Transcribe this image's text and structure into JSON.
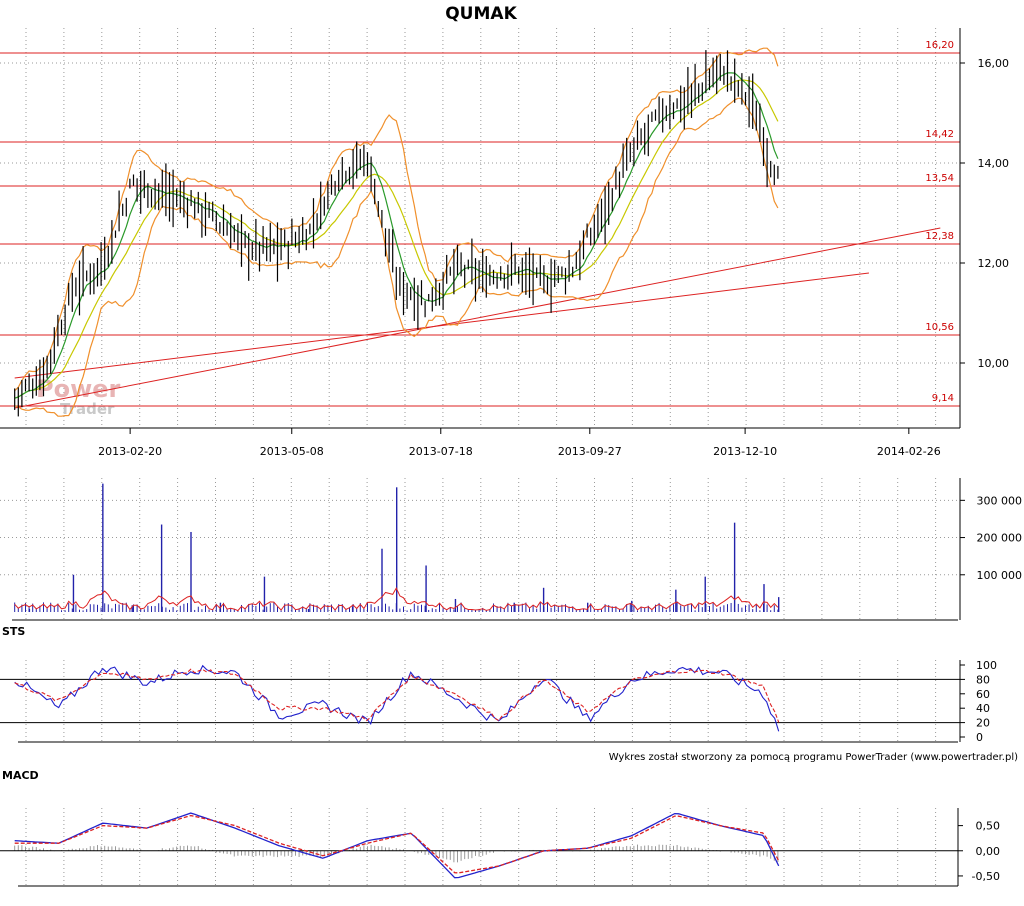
{
  "chart_data": [
    {
      "type": "line",
      "title": "QUMAK",
      "xlabel": "",
      "ylabel": "",
      "ylim": [
        8.7,
        16.7
      ],
      "x_ticks": [
        "2013-02-20",
        "2013-05-08",
        "2013-07-18",
        "2013-09-27",
        "2013-12-10",
        "2014-02-26"
      ],
      "y_ticks": [
        "10,00",
        "12,00",
        "14,00",
        "16,00"
      ],
      "levels": [
        {
          "label": "16,20",
          "value": 16.2
        },
        {
          "label": "14,42",
          "value": 14.42
        },
        {
          "label": "13,54",
          "value": 13.54
        },
        {
          "label": "12,38",
          "value": 12.38
        },
        {
          "label": "10,56",
          "value": 10.56
        },
        {
          "label": "9,14",
          "value": 9.14
        }
      ],
      "trendlines": [
        {
          "from": [
            "2012-12-27",
            9.1
          ],
          "to": [
            "2014-03-13",
            12.7
          ]
        },
        {
          "from": [
            "2012-12-27",
            9.7
          ],
          "to": [
            "2014-02-07",
            11.8
          ]
        }
      ],
      "x": [
        "2012-12-27",
        "2013-01-10",
        "2013-01-24",
        "2013-02-07",
        "2013-02-21",
        "2013-03-07",
        "2013-03-21",
        "2013-04-04",
        "2013-04-18",
        "2013-05-02",
        "2013-05-16",
        "2013-05-30",
        "2013-06-13",
        "2013-06-27",
        "2013-07-11",
        "2013-07-25",
        "2013-08-08",
        "2013-08-22",
        "2013-09-05",
        "2013-09-19",
        "2013-10-03",
        "2013-10-17",
        "2013-10-31",
        "2013-11-14",
        "2013-11-28",
        "2013-12-12",
        "2013-12-26"
      ],
      "close": [
        9.3,
        9.8,
        11.5,
        12.0,
        13.6,
        13.4,
        13.2,
        12.8,
        12.3,
        12.3,
        12.6,
        13.8,
        14.1,
        11.6,
        11.2,
        11.9,
        11.7,
        11.9,
        11.6,
        11.9,
        13.0,
        14.2,
        15.0,
        15.3,
        15.9,
        15.3,
        13.6
      ],
      "series": [
        {
          "name": "",
          "color": "#2a9a2a",
          "kind": "moving average"
        },
        {
          "name": "",
          "color": "#c8c800",
          "kind": "moving average"
        },
        {
          "name": "",
          "color": "#f0902c",
          "kind": "bollinger bands"
        }
      ],
      "watermark": [
        "Power",
        "Trader"
      ]
    },
    {
      "type": "bar",
      "title": "",
      "y_ticks": [
        "100 000",
        "200 000",
        "300 000"
      ],
      "ylim": [
        0,
        360000
      ],
      "x": [
        "2013-01-03",
        "2013-01-24",
        "2013-02-07",
        "2013-02-21",
        "2013-03-07",
        "2013-03-21",
        "2013-04-04",
        "2013-04-25",
        "2013-05-16",
        "2013-06-06",
        "2013-06-20",
        "2013-06-27",
        "2013-07-11",
        "2013-07-25",
        "2013-08-22",
        "2013-09-05",
        "2013-09-26",
        "2013-10-17",
        "2013-11-07",
        "2013-11-21",
        "2013-12-05",
        "2013-12-19",
        "2013-12-26"
      ],
      "values": [
        8000,
        100000,
        345000,
        18000,
        235000,
        215000,
        25000,
        95000,
        8000,
        15000,
        170000,
        335000,
        125000,
        35000,
        25000,
        65000,
        25000,
        30000,
        60000,
        95000,
        240000,
        75000,
        40000
      ]
    },
    {
      "type": "line",
      "title": "STS",
      "y_ticks": [
        "0",
        "20",
        "40",
        "60",
        "80",
        "100"
      ],
      "ylim": [
        0,
        100
      ],
      "reference_lines": [
        20,
        80
      ],
      "x": [
        "2012-12-27",
        "2013-01-17",
        "2013-02-07",
        "2013-02-28",
        "2013-03-21",
        "2013-04-11",
        "2013-05-02",
        "2013-05-23",
        "2013-06-13",
        "2013-07-04",
        "2013-07-25",
        "2013-08-15",
        "2013-09-05",
        "2013-09-26",
        "2013-10-17",
        "2013-11-07",
        "2013-11-28",
        "2013-12-19",
        "2013-12-26"
      ],
      "series": [
        {
          "name": "",
          "color": "#2222cc",
          "values": [
            80,
            40,
            98,
            75,
            95,
            90,
            30,
            45,
            20,
            90,
            55,
            20,
            85,
            25,
            80,
            95,
            90,
            60,
            10
          ]
        },
        {
          "name": "",
          "color": "#dd2222",
          "values": [
            75,
            50,
            90,
            80,
            92,
            88,
            40,
            40,
            25,
            85,
            60,
            25,
            80,
            35,
            78,
            92,
            90,
            70,
            20
          ]
        }
      ],
      "footer": "Wykres został stworzony za pomocą programu PowerTrader (www.powertrader.pl)"
    },
    {
      "type": "line",
      "title": "MACD",
      "y_ticks": [
        "-0,50",
        "0,00",
        "0,50"
      ],
      "ylim": [
        -0.7,
        0.85
      ],
      "x": [
        "2012-12-27",
        "2013-01-17",
        "2013-02-07",
        "2013-02-28",
        "2013-03-21",
        "2013-04-11",
        "2013-05-02",
        "2013-05-23",
        "2013-06-13",
        "2013-07-04",
        "2013-07-25",
        "2013-08-15",
        "2013-09-05",
        "2013-09-26",
        "2013-10-17",
        "2013-11-07",
        "2013-11-28",
        "2013-12-19",
        "2013-12-26"
      ],
      "series": [
        {
          "name": "",
          "color": "#2222cc",
          "values": [
            0.2,
            0.15,
            0.55,
            0.45,
            0.75,
            0.45,
            0.1,
            -0.15,
            0.2,
            0.35,
            -0.55,
            -0.3,
            0.0,
            0.05,
            0.3,
            0.75,
            0.5,
            0.3,
            -0.3
          ]
        },
        {
          "name": "",
          "color": "#dd2222",
          "values": [
            0.15,
            0.15,
            0.5,
            0.45,
            0.7,
            0.5,
            0.15,
            -0.1,
            0.15,
            0.35,
            -0.45,
            -0.3,
            0.0,
            0.05,
            0.25,
            0.7,
            0.5,
            0.35,
            -0.2
          ]
        }
      ]
    }
  ]
}
